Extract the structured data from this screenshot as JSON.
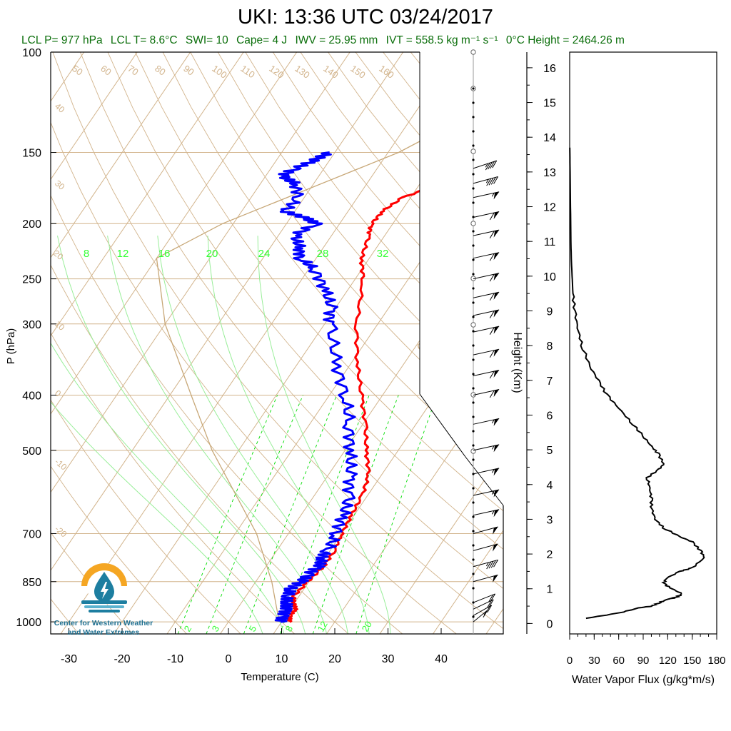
{
  "title": "UKI: 13:36 UTC 03/24/2017",
  "stats": {
    "lcl_p": "LCL P= 977 hPa",
    "lcl_t": "LCL T= 8.6°C",
    "swi": "SWI= 10",
    "cape": "Cape= 4 J",
    "iwv": "IWV = 25.95 mm",
    "ivt": "IVT = 558.5 kg m⁻¹ s⁻¹",
    "zero_height": "0°C Height = 2464.26 m"
  },
  "logo": {
    "line1": "Center for Western Weather",
    "line2": "and Water Extremes",
    "colors": {
      "sun": "#f5a623",
      "water": "#1d7ea0",
      "waves": "#5bb3cf"
    }
  },
  "colors": {
    "temperature": "#ff0000",
    "dewpoint": "#0000ff",
    "dry_adiabat": "#d2b48c",
    "mixing_ratio": "#00dd00",
    "mixing_label": "#33ff33",
    "parcel": "#c8a878",
    "stats_text": "#0a6e0a"
  },
  "chart_data": [
    {
      "type": "line",
      "name": "skewt",
      "xlabel": "Temperature (C)",
      "ylabel": "P (hPa)",
      "xlim": [
        -35,
        50
      ],
      "pressure_ticks": [
        100,
        150,
        200,
        250,
        300,
        400,
        500,
        700,
        850,
        1000
      ],
      "temperature_ticks": [
        -30,
        -20,
        -10,
        0,
        10,
        20,
        30,
        40
      ],
      "dry_adiabat_labels": [
        50,
        60,
        70,
        80,
        90,
        100,
        110,
        120,
        130,
        140,
        150,
        160
      ],
      "moist_labels": [
        40,
        30,
        20,
        10,
        0,
        -10,
        -20
      ],
      "mixing_ratio_labels_top": [
        8,
        12,
        16,
        20,
        24,
        28,
        32
      ],
      "mixing_ratio_labels_bottom": [
        2,
        3,
        5,
        8,
        12,
        20
      ],
      "height_km_side_labels": [
        30,
        20,
        10,
        0,
        10,
        20,
        30
      ],
      "series": [
        {
          "name": "Temperature",
          "points": [
            [
              1000,
              11.5
            ],
            [
              975,
              10.8
            ],
            [
              950,
              11.0
            ],
            [
              925,
              9.8
            ],
            [
              900,
              9.0
            ],
            [
              850,
              9.8
            ],
            [
              800,
              10.8
            ],
            [
              750,
              10.8
            ],
            [
              700,
              10.0
            ],
            [
              650,
              9.5
            ],
            [
              600,
              9.0
            ],
            [
              550,
              7.5
            ],
            [
              500,
              4.0
            ],
            [
              450,
              0.5
            ],
            [
              400,
              -4.0
            ],
            [
              350,
              -9.0
            ],
            [
              300,
              -14.0
            ],
            [
              250,
              -18.5
            ],
            [
              230,
              -21.5
            ],
            [
              210,
              -23.0
            ],
            [
              200,
              -24.0
            ],
            [
              190,
              -23.5
            ],
            [
              180,
              -21.5
            ],
            [
              170,
              -16.0
            ],
            [
              165,
              -12.0
            ],
            [
              160,
              -8.5
            ],
            [
              155,
              -6.5
            ],
            [
              150,
              -6.0
            ]
          ]
        },
        {
          "name": "Dewpoint",
          "points": [
            [
              1000,
              9.8
            ],
            [
              975,
              9.5
            ],
            [
              950,
              9.2
            ],
            [
              925,
              8.5
            ],
            [
              900,
              7.8
            ],
            [
              875,
              7.5
            ],
            [
              850,
              8.5
            ],
            [
              825,
              9.0
            ],
            [
              800,
              9.8
            ],
            [
              775,
              9.5
            ],
            [
              750,
              9.5
            ],
            [
              700,
              9.0
            ],
            [
              650,
              8.0
            ],
            [
              600,
              6.5
            ],
            [
              550,
              4.0
            ],
            [
              500,
              1.0
            ],
            [
              450,
              -2.5
            ],
            [
              400,
              -7.0
            ],
            [
              350,
              -13.0
            ],
            [
              300,
              -19.0
            ],
            [
              280,
              -21.0
            ],
            [
              260,
              -24.5
            ],
            [
              240,
              -29.0
            ],
            [
              230,
              -33.0
            ],
            [
              220,
              -34.5
            ],
            [
              210,
              -37.0
            ],
            [
              200,
              -34.5
            ],
            [
              195,
              -37.5
            ],
            [
              190,
              -42.0
            ],
            [
              180,
              -41.0
            ],
            [
              170,
              -43.5
            ],
            [
              165,
              -47.0
            ],
            [
              160,
              -45.5
            ],
            [
              155,
              -43.0
            ],
            [
              150,
              -41.0
            ]
          ]
        },
        {
          "name": "Parcel",
          "points": [
            [
              1000,
              11.0
            ],
            [
              977,
              8.6
            ],
            [
              850,
              3.0
            ],
            [
              700,
              -6.0
            ],
            [
              500,
              -25.0
            ],
            [
              400,
              -36.0
            ],
            [
              300,
              -50.0
            ],
            [
              230,
              -60.0
            ],
            [
              200,
              -52.0
            ],
            [
              150,
              -28.0
            ],
            [
              100,
              -5.0
            ]
          ]
        }
      ],
      "wind_barbs": [
        {
          "p": 1000,
          "speed": 15,
          "dir": 210
        },
        {
          "p": 975,
          "speed": 15,
          "dir": 220
        },
        {
          "p": 950,
          "speed": 20,
          "dir": 225
        },
        {
          "p": 925,
          "speed": 20,
          "dir": 230
        },
        {
          "p": 850,
          "speed": 50,
          "dir": 240
        },
        {
          "p": 800,
          "speed": 45,
          "dir": 240
        },
        {
          "p": 750,
          "speed": 50,
          "dir": 240
        },
        {
          "p": 700,
          "speed": 50,
          "dir": 240
        },
        {
          "p": 650,
          "speed": 55,
          "dir": 245
        },
        {
          "p": 600,
          "speed": 55,
          "dir": 245
        },
        {
          "p": 550,
          "speed": 55,
          "dir": 245
        },
        {
          "p": 500,
          "speed": 55,
          "dir": 245
        },
        {
          "p": 450,
          "speed": 55,
          "dir": 245
        },
        {
          "p": 400,
          "speed": 60,
          "dir": 245
        },
        {
          "p": 370,
          "speed": 60,
          "dir": 245
        },
        {
          "p": 340,
          "speed": 60,
          "dir": 245
        },
        {
          "p": 310,
          "speed": 60,
          "dir": 245
        },
        {
          "p": 290,
          "speed": 60,
          "dir": 245
        },
        {
          "p": 270,
          "speed": 60,
          "dir": 245
        },
        {
          "p": 250,
          "speed": 60,
          "dir": 245
        },
        {
          "p": 230,
          "speed": 60,
          "dir": 245
        },
        {
          "p": 210,
          "speed": 60,
          "dir": 245
        },
        {
          "p": 195,
          "speed": 60,
          "dir": 245
        },
        {
          "p": 180,
          "speed": 55,
          "dir": 245
        },
        {
          "p": 170,
          "speed": 45,
          "dir": 240
        },
        {
          "p": 160,
          "speed": 45,
          "dir": 235
        }
      ]
    },
    {
      "type": "line",
      "name": "water_vapor_flux",
      "xlabel": "Water Vapor Flux (g/kg*m/s)",
      "ylabel": "Height (Km)",
      "xlim": [
        0,
        180
      ],
      "ylim": [
        0,
        16
      ],
      "xticks": [
        0,
        30,
        60,
        90,
        120,
        150,
        180
      ],
      "yticks": [
        0,
        1,
        2,
        3,
        4,
        5,
        6,
        7,
        8,
        9,
        10,
        11,
        12,
        13,
        14,
        15,
        16
      ],
      "series": [
        {
          "name": "Water Vapor Flux",
          "points": [
            [
              20,
              0.15
            ],
            [
              60,
              0.3
            ],
            [
              85,
              0.45
            ],
            [
              100,
              0.5
            ],
            [
              110,
              0.6
            ],
            [
              120,
              0.7
            ],
            [
              130,
              0.75
            ],
            [
              138,
              0.85
            ],
            [
              125,
              1.0
            ],
            [
              115,
              1.15
            ],
            [
              118,
              1.3
            ],
            [
              135,
              1.5
            ],
            [
              150,
              1.6
            ],
            [
              165,
              1.9
            ],
            [
              160,
              2.1
            ],
            [
              150,
              2.35
            ],
            [
              135,
              2.5
            ],
            [
              115,
              2.75
            ],
            [
              105,
              3.0
            ],
            [
              100,
              3.3
            ],
            [
              100,
              3.6
            ],
            [
              98,
              3.9
            ],
            [
              95,
              4.2
            ],
            [
              110,
              4.45
            ],
            [
              115,
              4.6
            ],
            [
              108,
              4.9
            ],
            [
              100,
              5.1
            ],
            [
              90,
              5.4
            ],
            [
              75,
              5.8
            ],
            [
              60,
              6.2
            ],
            [
              45,
              6.6
            ],
            [
              35,
              7.0
            ],
            [
              25,
              7.4
            ],
            [
              15,
              8.0
            ],
            [
              10,
              8.5
            ],
            [
              6,
              9.0
            ],
            [
              4,
              9.5
            ],
            [
              3,
              10.0
            ],
            [
              2,
              10.5
            ],
            [
              1.5,
              11
            ],
            [
              1,
              12
            ],
            [
              0.5,
              13
            ],
            [
              0.2,
              13.7
            ]
          ]
        }
      ]
    }
  ]
}
